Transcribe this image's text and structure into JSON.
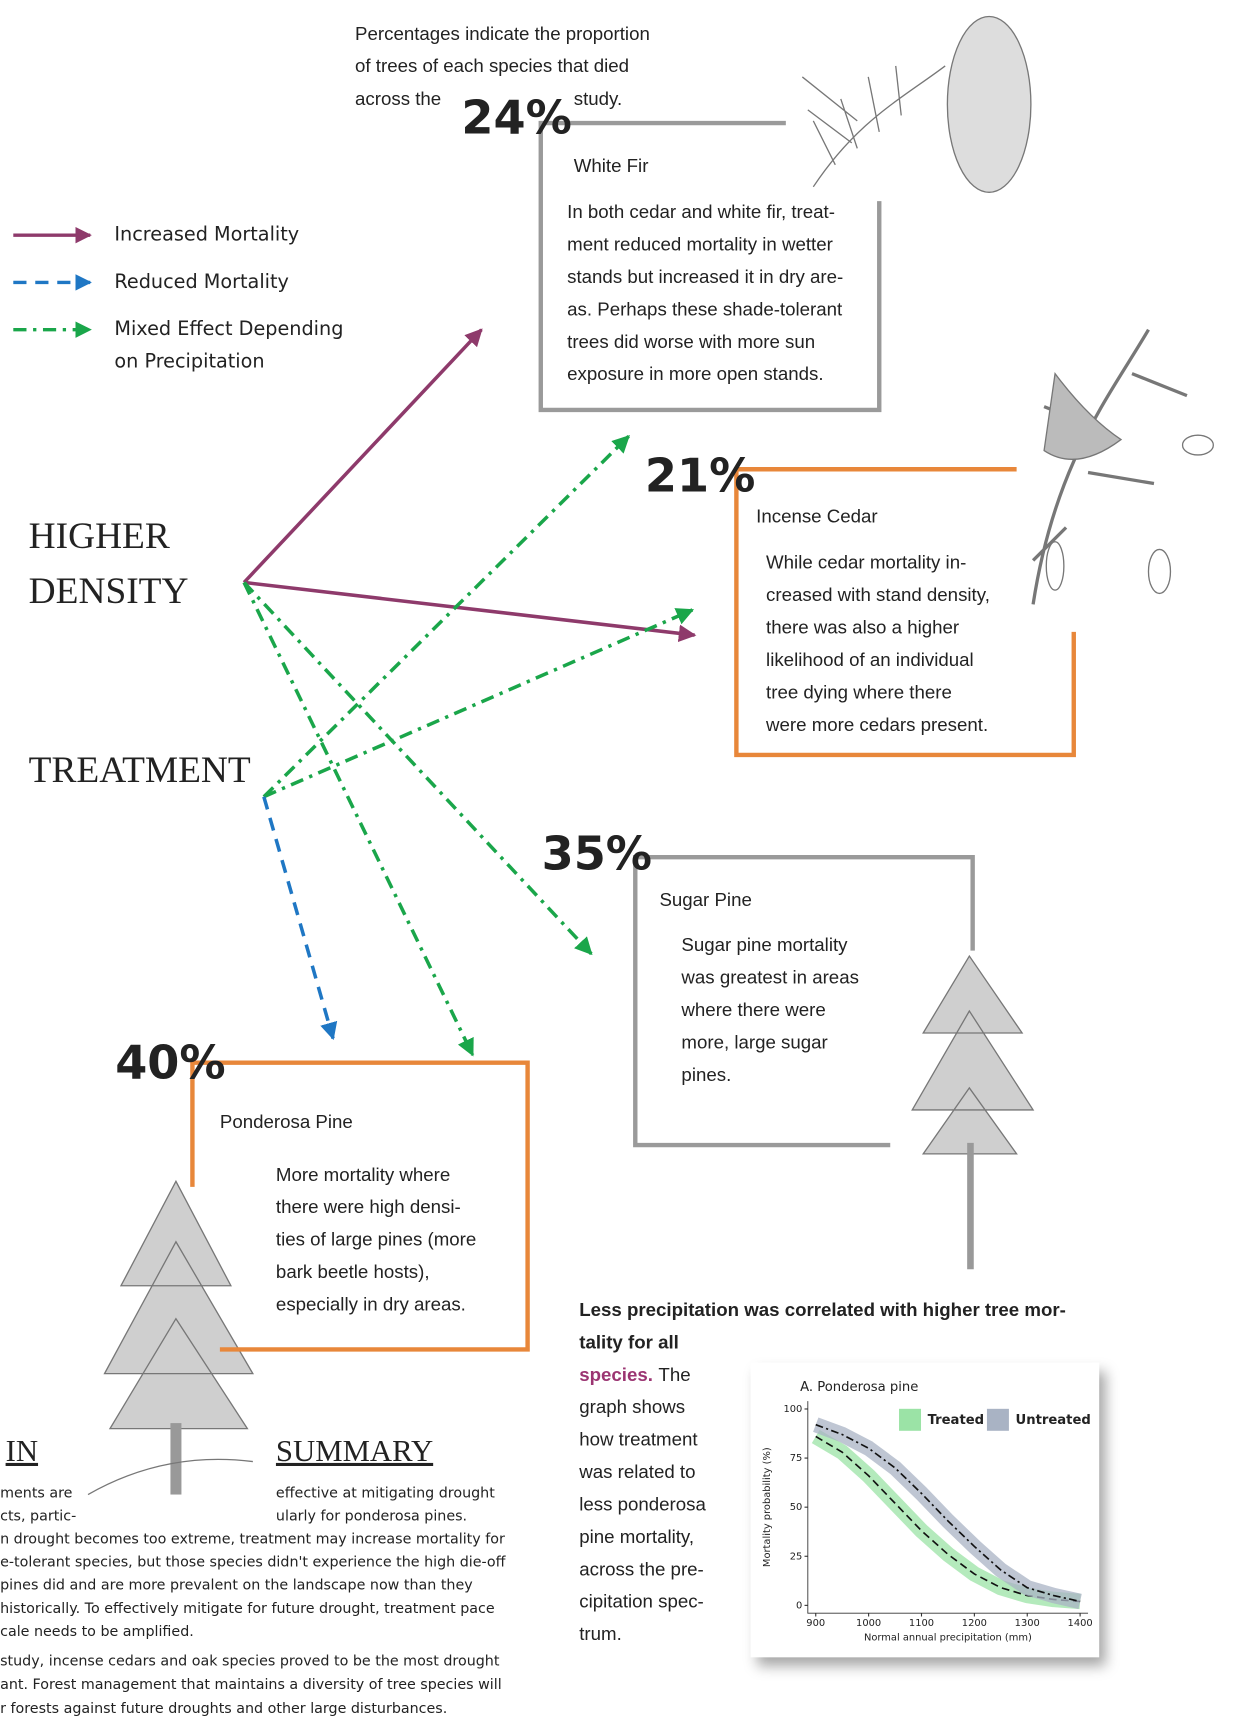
{
  "intro": [
    "Percentages indicate the proportion",
    "of trees of each species that died",
    "across the",
    "study."
  ],
  "legend": [
    {
      "label": [
        "Increased Mortality"
      ],
      "color": "#8e3a6b",
      "style": "solid"
    },
    {
      "label": [
        "Reduced Mortality"
      ],
      "color": "#1f77c4",
      "style": "dashed"
    },
    {
      "label": [
        "Mixed Effect Depending",
        "on Precipitation"
      ],
      "color": "#1aa64a",
      "style": "dashdot"
    }
  ],
  "factors": {
    "density": [
      "HIGHER",
      "DENSITY"
    ],
    "treatment": "TREATMENT"
  },
  "species": [
    {
      "percent": "24%",
      "name": "White Fir",
      "color": "#9a9a9a",
      "lines": [
        "In both cedar and white fir, treat-",
        "ment reduced mortality in wetter",
        "stands but increased it in dry are-",
        "as. Perhaps these shade-tolerant",
        "trees did worse with more sun",
        "exposure in more open stands."
      ]
    },
    {
      "percent": "21%",
      "name": "Incense Cedar",
      "color": "#e8873a",
      "lines": [
        "While cedar mortality in-",
        "creased with stand density,",
        "there was also a higher",
        "likelihood of an individual",
        "tree dying where there",
        "were more cedars present."
      ]
    },
    {
      "percent": "35%",
      "name": "Sugar Pine",
      "color": "#9a9a9a",
      "lines": [
        "Sugar pine mortality",
        "was greatest in areas",
        "where there were",
        "more, large sugar",
        "pines."
      ]
    },
    {
      "percent": "40%",
      "name": "Ponderosa Pine",
      "color": "#e8873a",
      "lines": [
        "More mortality where",
        "there were high densi-",
        "ties of large pines (more",
        "bark  beetle hosts),",
        "especially in dry areas."
      ]
    }
  ],
  "callout": {
    "highlight": [
      "Less precipitation was correlated with higher tree mor-",
      "tality for all",
      "species."
    ],
    "text": [
      "The",
      "graph shows",
      "how treatment",
      "was related to",
      "less ponderosa",
      "pine mortality,",
      "across the pre-",
      "cipitation spec-",
      "trum."
    ]
  },
  "chart_data": {
    "type": "line",
    "title": "A. Ponderosa pine",
    "x_label": "Normal annual precipitation (mm)",
    "y_label": "Mortality probability (%)",
    "x": [
      900,
      950,
      1000,
      1050,
      1100,
      1150,
      1200,
      1250,
      1300,
      1350,
      1400
    ],
    "series": [
      {
        "name": "Treated",
        "color": "#9be3a6",
        "values": [
          86,
          78,
          66,
          52,
          38,
          26,
          16,
          9,
          5,
          3,
          2
        ]
      },
      {
        "name": "Untreated",
        "color": "#a9b3c4",
        "values": [
          92,
          87,
          80,
          70,
          57,
          43,
          30,
          18,
          9,
          5,
          2
        ]
      }
    ],
    "xlim": [
      885,
      1415
    ],
    "ylim": [
      -4,
      104
    ],
    "xticks": [
      900,
      1000,
      1100,
      1200,
      1300,
      1400
    ],
    "yticks": [
      0,
      25,
      50,
      75,
      100
    ]
  },
  "summary": {
    "heading_left": "IN",
    "heading_right": "SUMMARY",
    "left_lines": [
      "ments are",
      "cts, partic-"
    ],
    "right_lines": [
      "effective at mitigating drought",
      "ularly for ponderosa pines."
    ],
    "paragraph1": [
      "n drought becomes too extreme, treatment may increase mortality for",
      "e-tolerant species, but those species didn't experience the high die-off",
      "pines did and are more prevalent on the landscape now than they",
      "historically. To effectively mitigate for future drought, treatment pace",
      "cale needs to be amplified."
    ],
    "paragraph2": [
      "study, incense cedars and oak species proved to be the most drought",
      "ant.  Forest management that maintains a diversity of tree species will",
      "r forests against future droughts and other large disturbances."
    ]
  }
}
